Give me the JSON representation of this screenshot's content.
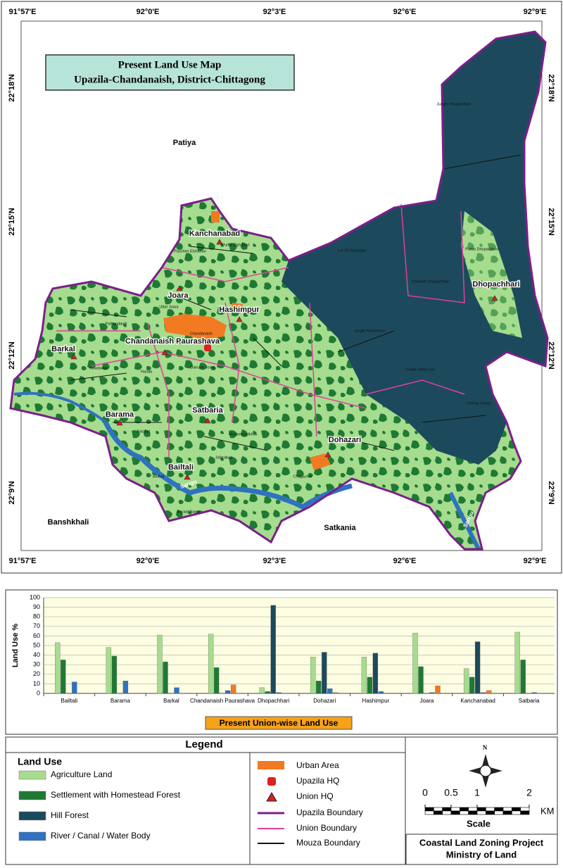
{
  "map": {
    "title": [
      "Present  Land Use Map",
      "Upazila-Chandanaish,  District-Chittagong"
    ],
    "lon_labels": [
      "91°57'E",
      "92°0'E",
      "92°3'E",
      "92°6'E",
      "92°9'E"
    ],
    "lat_labels": [
      "22°18'N",
      "22°15'N",
      "22°12'N",
      "22°9'N"
    ],
    "neighbours": [
      "Patiya",
      "Banshkhali",
      "Satkania"
    ],
    "unions": [
      "Kanchanabad",
      "Joara",
      "Hashimpur",
      "Chandanaish Paurashava",
      "Barkal",
      "Barama",
      "Satbaria",
      "Bailtali",
      "Dohazari",
      "Dhopachhari"
    ],
    "mouzas": [
      "Jungle Dhopachhari",
      "Lot 41 Elshahari",
      "Paschim Dhopachhari",
      "Purba Dhopachhari",
      "Jungle Hashimpur",
      "Jungle-Jamir-Juri",
      "Chiring Ghata",
      "Uttar Joara",
      "Pathandandi",
      "Kuladanga",
      "Harala",
      "Batajuri",
      "Jafarabad",
      "Bailtali",
      "Baraat Nagar",
      "Chagachar",
      "Mohammadkhali",
      "Purba Elshahari",
      "Paschim Elshahari",
      "Dakshin Joara",
      "Chandanaish"
    ],
    "rivers": [
      "Sangu",
      "Sangu"
    ]
  },
  "chart_data": {
    "type": "bar",
    "title": "Present Union-wise Land Use",
    "y_label": "Land Use %",
    "categories": [
      "Bailtali",
      "Barama",
      "Barkal",
      "Chandanaish Paurashava",
      "Dhopachhari",
      "Dohazari",
      "Hashimpur",
      "Joara",
      "Kanchanabad",
      "Satbaria"
    ],
    "series": [
      {
        "name": "Agriculture Land",
        "color": "#a6dc8e",
        "values": [
          53,
          48,
          61,
          62,
          6,
          38,
          38,
          63,
          26,
          64
        ]
      },
      {
        "name": "Settlement with Homestead Forest",
        "color": "#1e7a33",
        "values": [
          35,
          39,
          33,
          27,
          2,
          13,
          17,
          28,
          17,
          35
        ]
      },
      {
        "name": "Hill Forest",
        "color": "#1c4a5c",
        "values": [
          0,
          0,
          0,
          0,
          92,
          43,
          42,
          0,
          54,
          0
        ]
      },
      {
        "name": "River / Canal / Water Body",
        "color": "#2f72c0",
        "values": [
          12,
          13,
          6,
          3,
          1,
          5,
          2,
          1,
          1,
          1
        ]
      },
      {
        "name": "Urban Area",
        "color": "#f27a21",
        "values": [
          0,
          0,
          0,
          9,
          0,
          1,
          0,
          8,
          3,
          0
        ]
      }
    ],
    "ylim": [
      0,
      100
    ],
    "yticks": [
      0,
      10,
      20,
      30,
      40,
      50,
      60,
      70,
      80,
      90,
      100
    ],
    "grid": true
  },
  "legend": {
    "title": "Legend",
    "heading": "Land Use",
    "items": [
      "Upazila HQ",
      "Union HQ",
      "Upazila Boundary",
      "Union Boundary",
      "Mouza Boundary"
    ]
  },
  "scale": {
    "ticks": [
      0,
      0.5,
      1,
      2
    ],
    "unit": "KM",
    "label": "Scale",
    "north": "N"
  },
  "credit": [
    "Coastal Land Zoning Project",
    "Ministry of Land"
  ]
}
